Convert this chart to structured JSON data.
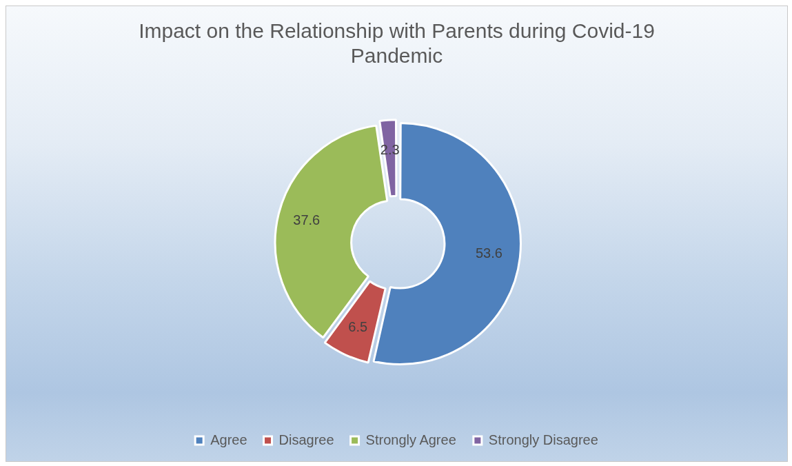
{
  "chart_data": {
    "type": "donut",
    "title": "Impact on the Relationship with Parents during Covid-19 Pandemic",
    "categories": [
      "Agree",
      "Disagree",
      "Strongly Agree",
      "Strongly Disagree"
    ],
    "values": [
      53.6,
      6.5,
      37.6,
      2.3
    ],
    "colors": [
      "#4f81bd",
      "#c0504d",
      "#9bbb59",
      "#8064a2"
    ],
    "data_labels": true,
    "legend": "bottom"
  }
}
